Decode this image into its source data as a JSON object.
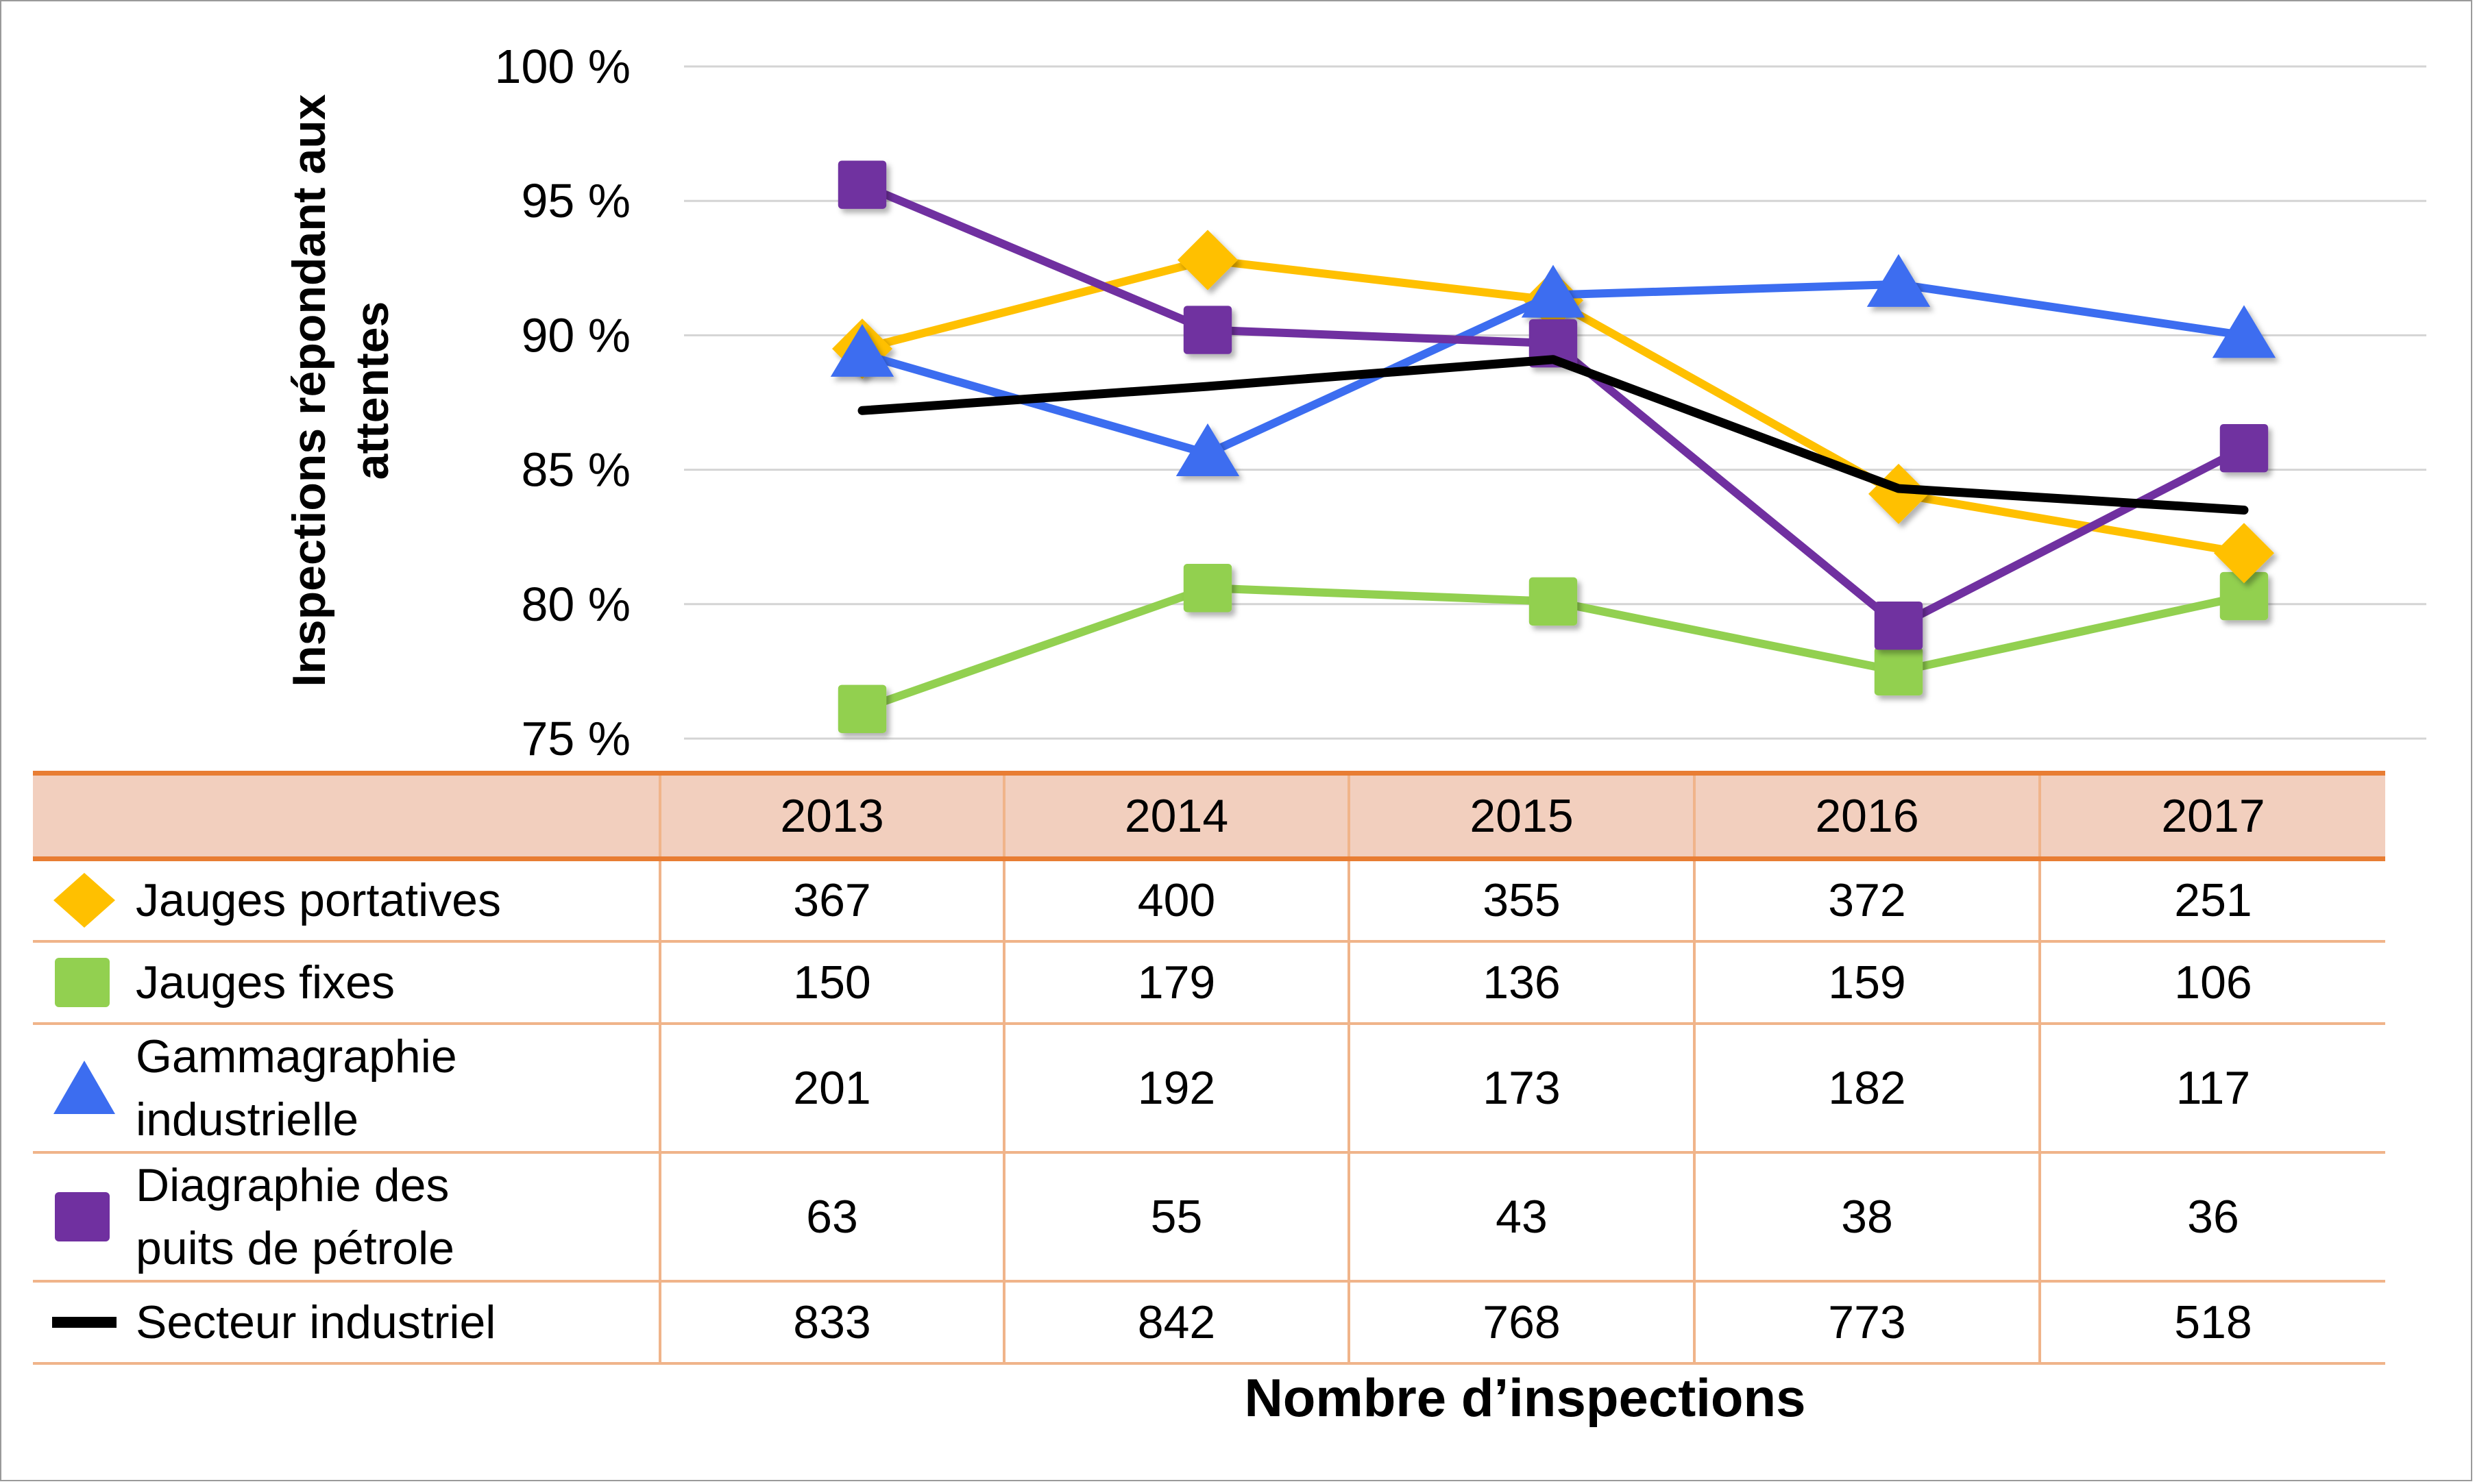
{
  "chart_data": {
    "type": "line",
    "title": "",
    "ylabel": "Inspections répondant aux attentes",
    "xlabel": "Nombre d’inspections",
    "ylim": [
      75,
      100
    ],
    "yticks": [
      "75 %",
      "80 %",
      "85 %",
      "90 %",
      "95 %",
      "100 %"
    ],
    "ytick_values": [
      75,
      80,
      85,
      90,
      95,
      100
    ],
    "grid": true,
    "categories": [
      "2013",
      "2014",
      "2015",
      "2016",
      "2017"
    ],
    "series": [
      {
        "name": "Jauges portatives",
        "color": "#ffc000",
        "marker": "diamond",
        "values": [
          89.5,
          92.8,
          91.3,
          84.1,
          81.9
        ],
        "counts": [
          "367",
          "400",
          "355",
          "372",
          "251"
        ]
      },
      {
        "name": "Jauges fixes",
        "color": "#92d050",
        "marker": "square",
        "values": [
          76.1,
          80.6,
          80.1,
          77.5,
          80.3
        ],
        "counts": [
          "150",
          "179",
          "136",
          "159",
          "106"
        ]
      },
      {
        "name": "Gammagraphie industrielle",
        "color": "#3c6df0",
        "marker": "triangle",
        "values": [
          89.3,
          85.6,
          91.5,
          91.9,
          90.0
        ],
        "counts": [
          "201",
          "192",
          "173",
          "182",
          "117"
        ]
      },
      {
        "name": "Diagraphie des puits de pétrole",
        "color": "#7030a0",
        "marker": "square",
        "values": [
          95.6,
          90.2,
          89.7,
          79.2,
          85.8
        ],
        "counts": [
          "63",
          "55",
          "43",
          "38",
          "36"
        ]
      },
      {
        "name": "Secteur industriel",
        "color": "#000000",
        "marker": "none",
        "values": [
          87.2,
          88.1,
          89.1,
          84.3,
          83.5
        ],
        "counts": [
          "833",
          "842",
          "768",
          "773",
          "518"
        ]
      }
    ]
  }
}
